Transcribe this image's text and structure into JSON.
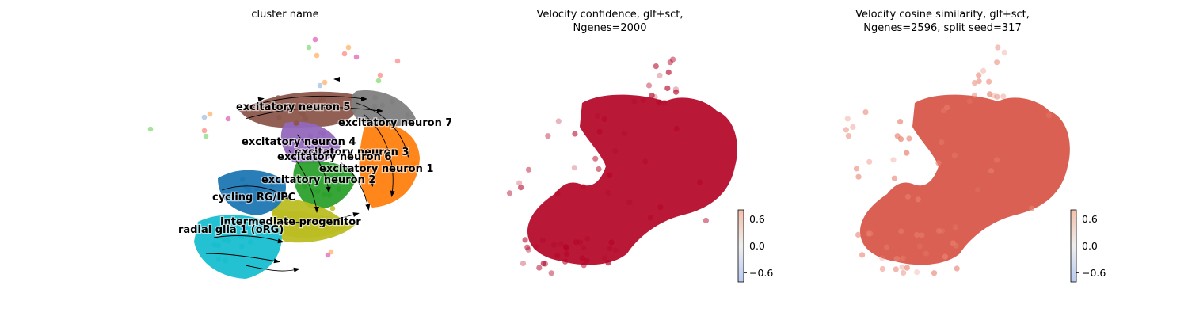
{
  "chart_data": [
    {
      "type": "scatter",
      "title": "cluster name",
      "subtype": "umap-embedding-with-velocity-streamlines",
      "clusters": [
        {
          "name": "excitatory neuron 5",
          "color": "#8c564b"
        },
        {
          "name": "excitatory neuron 7",
          "color": "#7f7f7f"
        },
        {
          "name": "excitatory neuron 4",
          "color": "#9467bd"
        },
        {
          "name": "excitatory neuron 3",
          "color": "#ff7f0e"
        },
        {
          "name": "excitatory neuron 6",
          "color": "#2ca02c"
        },
        {
          "name": "excitatory neuron 1",
          "color": "#ff7f0e"
        },
        {
          "name": "excitatory neuron 2",
          "color": "#bcbd22"
        },
        {
          "name": "cycling RG/IPC",
          "color": "#1f77b4"
        },
        {
          "name": "intermediate progenitor",
          "color": "#bcbd22"
        },
        {
          "name": "radial glia 1 (oRG)",
          "color": "#17becf"
        }
      ],
      "extra_point_colors": [
        "#e377c2",
        "#98df8a",
        "#ffbb78",
        "#ff9896",
        "#aec7e8"
      ],
      "grid": false,
      "axes_visible": false
    },
    {
      "type": "scatter",
      "title": "Velocity confidence, glf+sct,\nNgenes=2000",
      "subtype": "umap-embedding-colored-by-value",
      "dominant_color": "#b40426",
      "colorbar": {
        "ticks": [
          0.6,
          0.0,
          -0.6
        ],
        "tick_labels": [
          "0.6",
          "0.0",
          "−0.6"
        ],
        "range": [
          -0.8,
          0.8
        ],
        "cmap": "coolwarm"
      },
      "grid": false,
      "axes_visible": false
    },
    {
      "type": "scatter",
      "title": "Velocity cosine similarity, glf+sct,\nNgenes=2596, split seed=317",
      "subtype": "umap-embedding-colored-by-value",
      "dominant_color": "#d65244",
      "colorbar": {
        "ticks": [
          0.6,
          0.0,
          -0.6
        ],
        "tick_labels": [
          "0.6",
          "0.0",
          "−0.6"
        ],
        "range": [
          -0.8,
          0.8
        ],
        "cmap": "coolwarm"
      },
      "grid": false,
      "axes_visible": false
    }
  ]
}
